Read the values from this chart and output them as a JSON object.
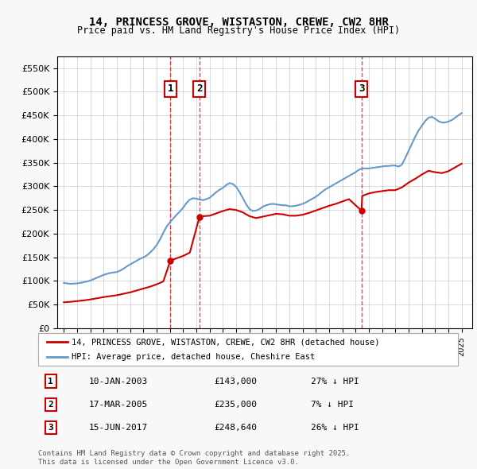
{
  "title": "14, PRINCESS GROVE, WISTASTON, CREWE, CW2 8HR",
  "subtitle": "Price paid vs. HM Land Registry's House Price Index (HPI)",
  "legend_property": "14, PRINCESS GROVE, WISTASTON, CREWE, CW2 8HR (detached house)",
  "legend_hpi": "HPI: Average price, detached house, Cheshire East",
  "footer": "Contains HM Land Registry data © Crown copyright and database right 2025.\nThis data is licensed under the Open Government Licence v3.0.",
  "sale_color": "#cc0000",
  "hpi_color": "#6699cc",
  "background_color": "#f8f8f8",
  "plot_bg_color": "#ffffff",
  "sales": [
    {
      "label": "1",
      "date_num": 2003.03,
      "price": 143000,
      "note": "27% ↓ HPI"
    },
    {
      "label": "2",
      "date_num": 2005.22,
      "price": 235000,
      "note": "7% ↓ HPI"
    },
    {
      "label": "3",
      "date_num": 2017.45,
      "price": 248640,
      "note": "26% ↓ HPI"
    }
  ],
  "sale_dates": [
    "10-JAN-2003",
    "17-MAR-2005",
    "15-JUN-2017"
  ],
  "sale_prices": [
    143000,
    235000,
    248640
  ],
  "sale_pct": [
    "27%",
    "7%",
    "26%"
  ],
  "ylim": [
    0,
    575000
  ],
  "yticks": [
    0,
    50000,
    100000,
    150000,
    200000,
    250000,
    300000,
    350000,
    400000,
    450000,
    500000,
    550000
  ],
  "xlim_start": 1994.5,
  "xlim_end": 2025.8,
  "hpi_data": {
    "years": [
      1995.0,
      1995.25,
      1995.5,
      1995.75,
      1996.0,
      1996.25,
      1996.5,
      1996.75,
      1997.0,
      1997.25,
      1997.5,
      1997.75,
      1998.0,
      1998.25,
      1998.5,
      1998.75,
      1999.0,
      1999.25,
      1999.5,
      1999.75,
      2000.0,
      2000.25,
      2000.5,
      2000.75,
      2001.0,
      2001.25,
      2001.5,
      2001.75,
      2002.0,
      2002.25,
      2002.5,
      2002.75,
      2003.0,
      2003.25,
      2003.5,
      2003.75,
      2004.0,
      2004.25,
      2004.5,
      2004.75,
      2005.0,
      2005.25,
      2005.5,
      2005.75,
      2006.0,
      2006.25,
      2006.5,
      2006.75,
      2007.0,
      2007.25,
      2007.5,
      2007.75,
      2008.0,
      2008.25,
      2008.5,
      2008.75,
      2009.0,
      2009.25,
      2009.5,
      2009.75,
      2010.0,
      2010.25,
      2010.5,
      2010.75,
      2011.0,
      2011.25,
      2011.5,
      2011.75,
      2012.0,
      2012.25,
      2012.5,
      2012.75,
      2013.0,
      2013.25,
      2013.5,
      2013.75,
      2014.0,
      2014.25,
      2014.5,
      2014.75,
      2015.0,
      2015.25,
      2015.5,
      2015.75,
      2016.0,
      2016.25,
      2016.5,
      2016.75,
      2017.0,
      2017.25,
      2017.5,
      2017.75,
      2018.0,
      2018.25,
      2018.5,
      2018.75,
      2019.0,
      2019.25,
      2019.5,
      2019.75,
      2020.0,
      2020.25,
      2020.5,
      2020.75,
      2021.0,
      2021.25,
      2021.5,
      2021.75,
      2022.0,
      2022.25,
      2022.5,
      2022.75,
      2023.0,
      2023.25,
      2023.5,
      2023.75,
      2024.0,
      2024.25,
      2024.5,
      2024.75,
      2025.0
    ],
    "values": [
      96000,
      95000,
      94000,
      94500,
      95000,
      96000,
      97500,
      99000,
      101000,
      104000,
      107000,
      110000,
      113000,
      115000,
      117000,
      118000,
      119000,
      122000,
      126000,
      131000,
      135000,
      139000,
      143000,
      147000,
      150000,
      154000,
      160000,
      167000,
      176000,
      188000,
      202000,
      215000,
      224000,
      232000,
      240000,
      247000,
      255000,
      265000,
      272000,
      275000,
      274000,
      272000,
      271000,
      273000,
      276000,
      282000,
      288000,
      293000,
      297000,
      303000,
      307000,
      305000,
      299000,
      288000,
      275000,
      262000,
      252000,
      248000,
      249000,
      252000,
      257000,
      260000,
      262000,
      263000,
      262000,
      261000,
      260000,
      260000,
      258000,
      258000,
      259000,
      261000,
      263000,
      266000,
      270000,
      274000,
      278000,
      283000,
      289000,
      294000,
      298000,
      302000,
      306000,
      310000,
      314000,
      318000,
      322000,
      326000,
      330000,
      335000,
      338000,
      338000,
      338000,
      339000,
      340000,
      341000,
      342000,
      343000,
      343000,
      344000,
      344000,
      342000,
      346000,
      360000,
      375000,
      390000,
      405000,
      418000,
      428000,
      438000,
      445000,
      447000,
      443000,
      438000,
      435000,
      435000,
      437000,
      440000,
      445000,
      450000,
      455000
    ]
  },
  "property_data": {
    "years": [
      1995.0,
      1995.5,
      1996.0,
      1996.5,
      1997.0,
      1997.5,
      1998.0,
      1998.5,
      1999.0,
      1999.5,
      2000.0,
      2000.5,
      2001.0,
      2001.5,
      2002.0,
      2002.5,
      2003.03,
      2003.5,
      2004.0,
      2004.5,
      2005.22,
      2005.5,
      2006.0,
      2006.5,
      2007.0,
      2007.5,
      2008.0,
      2008.5,
      2009.0,
      2009.5,
      2010.0,
      2010.5,
      2011.0,
      2011.5,
      2012.0,
      2012.5,
      2013.0,
      2013.5,
      2014.0,
      2014.5,
      2015.0,
      2015.5,
      2016.0,
      2016.5,
      2017.45,
      2017.5,
      2018.0,
      2018.5,
      2019.0,
      2019.5,
      2020.0,
      2020.5,
      2021.0,
      2021.5,
      2022.0,
      2022.5,
      2023.0,
      2023.5,
      2024.0,
      2024.5,
      2025.0
    ],
    "values": [
      55000,
      56000,
      57500,
      59000,
      61000,
      63500,
      66000,
      68000,
      70000,
      73000,
      76000,
      80000,
      84000,
      88000,
      93000,
      99000,
      143000,
      148000,
      153000,
      160000,
      235000,
      237000,
      238000,
      243000,
      248000,
      252000,
      250000,
      245000,
      237000,
      233000,
      236000,
      239000,
      242000,
      241000,
      238000,
      238000,
      240000,
      244000,
      249000,
      254000,
      259000,
      263000,
      268000,
      273000,
      248640,
      280000,
      285000,
      288000,
      290000,
      292000,
      292000,
      298000,
      308000,
      316000,
      325000,
      333000,
      330000,
      328000,
      332000,
      340000,
      348000
    ]
  }
}
